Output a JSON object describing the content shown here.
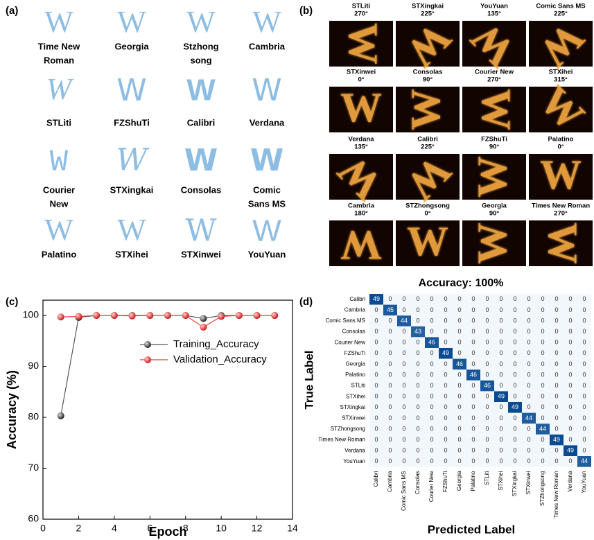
{
  "panels": [
    "(a)",
    "(b)",
    "(c)",
    "(d)"
  ],
  "glyph": "W",
  "fonts_a": [
    {
      "label": [
        "Time New",
        "Roman"
      ]
    },
    {
      "label": [
        "Georgia"
      ]
    },
    {
      "label": [
        "Stzhong",
        "song"
      ]
    },
    {
      "label": [
        "Cambria"
      ]
    },
    {
      "label": [
        "STLiti"
      ]
    },
    {
      "label": [
        "FZShuTi"
      ]
    },
    {
      "label": [
        "Calibri"
      ]
    },
    {
      "label": [
        "Verdana"
      ]
    },
    {
      "label": [
        "Courier",
        "New"
      ]
    },
    {
      "label": [
        "STXingkai"
      ]
    },
    {
      "label": [
        "Consolas"
      ]
    },
    {
      "label": [
        "Comic",
        "Sans MS"
      ]
    },
    {
      "label": [
        "Palatino"
      ]
    },
    {
      "label": [
        "STXihei"
      ]
    },
    {
      "label": [
        "STXinwei"
      ]
    },
    {
      "label": [
        "YouYuan"
      ]
    }
  ],
  "images_b": [
    {
      "name": "STLiti",
      "angle": "270°"
    },
    {
      "name": "STXingkai",
      "angle": "225°"
    },
    {
      "name": "YouYuan",
      "angle": "135°"
    },
    {
      "name": "Comic Sans MS",
      "angle": "225°"
    },
    {
      "name": "STXinwei",
      "angle": "0°"
    },
    {
      "name": "Consolas",
      "angle": "90°"
    },
    {
      "name": "Courier New",
      "angle": "270°"
    },
    {
      "name": "STXihei",
      "angle": "315°"
    },
    {
      "name": "Verdana",
      "angle": "135°"
    },
    {
      "name": "Calibri",
      "angle": "225°"
    },
    {
      "name": "FZShuTi",
      "angle": "90°"
    },
    {
      "name": "Palatino",
      "angle": "0°"
    },
    {
      "name": "Cambria",
      "angle": "180°"
    },
    {
      "name": "STZhongsong",
      "angle": "0°"
    },
    {
      "name": "Georgia",
      "angle": "90°"
    },
    {
      "name": "Times New Roman",
      "angle": "270°"
    }
  ],
  "accuracy_caption": "Accuracy: 100%",
  "chart_data": [
    {
      "type": "line",
      "x_label": "Epoch",
      "y_label": "Accuracy (%)",
      "x": [
        1,
        2,
        3,
        4,
        5,
        6,
        7,
        8,
        9,
        10,
        11,
        12,
        13
      ],
      "series": [
        {
          "name": "Training_Accuracy",
          "color": "#555555",
          "values": [
            80.3,
            99.6,
            100,
            100,
            100,
            100,
            100,
            100,
            99.4,
            100,
            100,
            100,
            100
          ]
        },
        {
          "name": "Validation_Accuracy",
          "color": "#e83a3a",
          "values": [
            99.7,
            99.8,
            100,
            100,
            99.9,
            100,
            100,
            100,
            97.7,
            99.8,
            100,
            100,
            100
          ]
        }
      ],
      "xlim": [
        0,
        14
      ],
      "xticks": [
        0,
        2,
        4,
        6,
        8,
        10,
        12,
        14
      ],
      "ylim": [
        60,
        103
      ],
      "yticks": [
        60,
        70,
        80,
        90,
        100
      ]
    },
    {
      "type": "heatmap",
      "x_label": "Predicted Label",
      "y_label": "True Label",
      "categories": [
        "Calibri",
        "Cambria",
        "Comic Sans MS",
        "Consolas",
        "Courier New",
        "FZShuTi",
        "Georgia",
        "Palatino",
        "STLiti",
        "STXihei",
        "STXingkai",
        "STXinwei",
        "STZhongsong",
        "Times New Roman",
        "Verdana",
        "YouYuan"
      ],
      "matrix": [
        [
          49,
          0,
          0,
          0,
          0,
          0,
          0,
          0,
          0,
          0,
          0,
          0,
          0,
          0,
          0,
          0
        ],
        [
          0,
          45,
          0,
          0,
          0,
          0,
          0,
          0,
          0,
          0,
          0,
          0,
          0,
          0,
          0,
          0
        ],
        [
          0,
          0,
          44,
          0,
          0,
          0,
          0,
          0,
          0,
          0,
          0,
          0,
          0,
          0,
          0,
          0
        ],
        [
          0,
          0,
          0,
          43,
          0,
          0,
          0,
          0,
          0,
          0,
          0,
          0,
          0,
          0,
          0,
          0
        ],
        [
          0,
          0,
          0,
          0,
          46,
          0,
          0,
          0,
          0,
          0,
          0,
          0,
          0,
          0,
          0,
          0
        ],
        [
          0,
          0,
          0,
          0,
          0,
          49,
          0,
          0,
          0,
          0,
          0,
          0,
          0,
          0,
          0,
          0
        ],
        [
          0,
          0,
          0,
          0,
          0,
          0,
          46,
          0,
          0,
          0,
          0,
          0,
          0,
          0,
          0,
          0
        ],
        [
          0,
          0,
          0,
          0,
          0,
          0,
          0,
          46,
          0,
          0,
          0,
          0,
          0,
          0,
          0,
          0
        ],
        [
          0,
          0,
          0,
          0,
          0,
          0,
          0,
          0,
          46,
          0,
          0,
          0,
          0,
          0,
          0,
          0
        ],
        [
          0,
          0,
          0,
          0,
          0,
          0,
          0,
          0,
          0,
          49,
          0,
          0,
          0,
          0,
          0,
          0
        ],
        [
          0,
          0,
          0,
          0,
          0,
          0,
          0,
          0,
          0,
          0,
          49,
          0,
          0,
          0,
          0,
          0
        ],
        [
          0,
          0,
          0,
          0,
          0,
          0,
          0,
          0,
          0,
          0,
          0,
          44,
          0,
          0,
          0,
          0
        ],
        [
          0,
          0,
          0,
          0,
          0,
          0,
          0,
          0,
          0,
          0,
          0,
          0,
          44,
          0,
          0,
          0
        ],
        [
          0,
          0,
          0,
          0,
          0,
          0,
          0,
          0,
          0,
          0,
          0,
          0,
          0,
          49,
          0,
          0
        ],
        [
          0,
          0,
          0,
          0,
          0,
          0,
          0,
          0,
          0,
          0,
          0,
          0,
          0,
          0,
          49,
          0
        ],
        [
          0,
          0,
          0,
          0,
          0,
          0,
          0,
          0,
          0,
          0,
          0,
          0,
          0,
          0,
          0,
          44
        ]
      ]
    }
  ]
}
